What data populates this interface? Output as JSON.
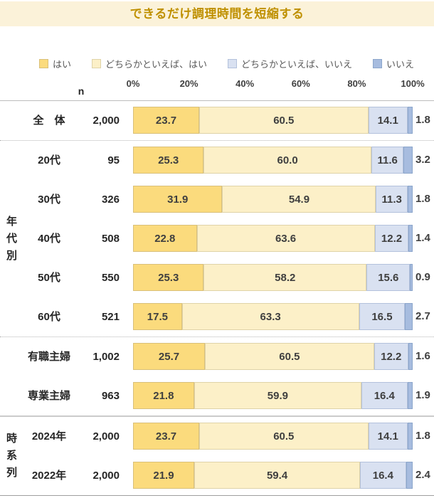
{
  "title": "できるだけ調理時間を短縮する",
  "axis": {
    "n_label": "n",
    "ticks": [
      "0%",
      "20%",
      "40%",
      "60%",
      "80%",
      "100%"
    ]
  },
  "legend": [
    {
      "label": "はい",
      "color": "#FBDB7D",
      "border": "#D9C07A"
    },
    {
      "label": "どちらかといえば、はい",
      "color": "#FCF0C8",
      "border": "#DFD3A8"
    },
    {
      "label": "どちらかといえば、いいえ",
      "color": "#D9E1F1",
      "border": "#B3C1DC"
    },
    {
      "label": "いいえ",
      "color": "#A7BCDF",
      "border": "#8CA6CB"
    }
  ],
  "colors": {
    "header_bg": "#FBF2D9",
    "title_text": "#BF9000",
    "bar_label": "#3F3F3F",
    "row_label": "#262626",
    "legend_text": "#595959",
    "tick_text": "#404040"
  },
  "chart_data": {
    "type": "bar",
    "subtype": "horizontal-stacked-100pct",
    "title": "できるだけ調理時間を短縮する",
    "series_labels": [
      "はい",
      "どちらかといえば、はい",
      "どちらかといえば、いいえ",
      "いいえ"
    ],
    "unit": "%",
    "xlim": [
      0,
      100
    ],
    "legend_position": "top",
    "grid": false,
    "groups": [
      {
        "group": "",
        "divider_after": "dotted",
        "rows": [
          {
            "label": "全　体",
            "n": "2,000",
            "values": [
              23.7,
              60.5,
              14.1,
              1.8
            ]
          }
        ]
      },
      {
        "group": "年代別",
        "divider_after": "dotted",
        "rows": [
          {
            "label": "20代",
            "n": "95",
            "values": [
              25.3,
              60.0,
              11.6,
              3.2
            ]
          },
          {
            "label": "30代",
            "n": "326",
            "values": [
              31.9,
              54.9,
              11.3,
              1.8
            ]
          },
          {
            "label": "40代",
            "n": "508",
            "values": [
              22.8,
              63.6,
              12.2,
              1.4
            ]
          },
          {
            "label": "50代",
            "n": "550",
            "values": [
              25.3,
              58.2,
              15.6,
              0.9
            ]
          },
          {
            "label": "60代",
            "n": "521",
            "values": [
              17.5,
              63.3,
              16.5,
              2.7
            ]
          }
        ]
      },
      {
        "group": "",
        "divider_after": "solid",
        "rows": [
          {
            "label": "有職主婦",
            "n": "1,002",
            "values": [
              25.7,
              60.5,
              12.2,
              1.6
            ]
          },
          {
            "label": "専業主婦",
            "n": "963",
            "values": [
              21.8,
              59.9,
              16.4,
              1.9
            ]
          }
        ]
      },
      {
        "group": "時系列",
        "divider_after": "solid",
        "rows": [
          {
            "label": "2024年",
            "n": "2,000",
            "values": [
              23.7,
              60.5,
              14.1,
              1.8
            ]
          },
          {
            "label": "2022年",
            "n": "2,000",
            "values": [
              21.9,
              59.4,
              16.4,
              2.4
            ]
          }
        ]
      }
    ]
  }
}
